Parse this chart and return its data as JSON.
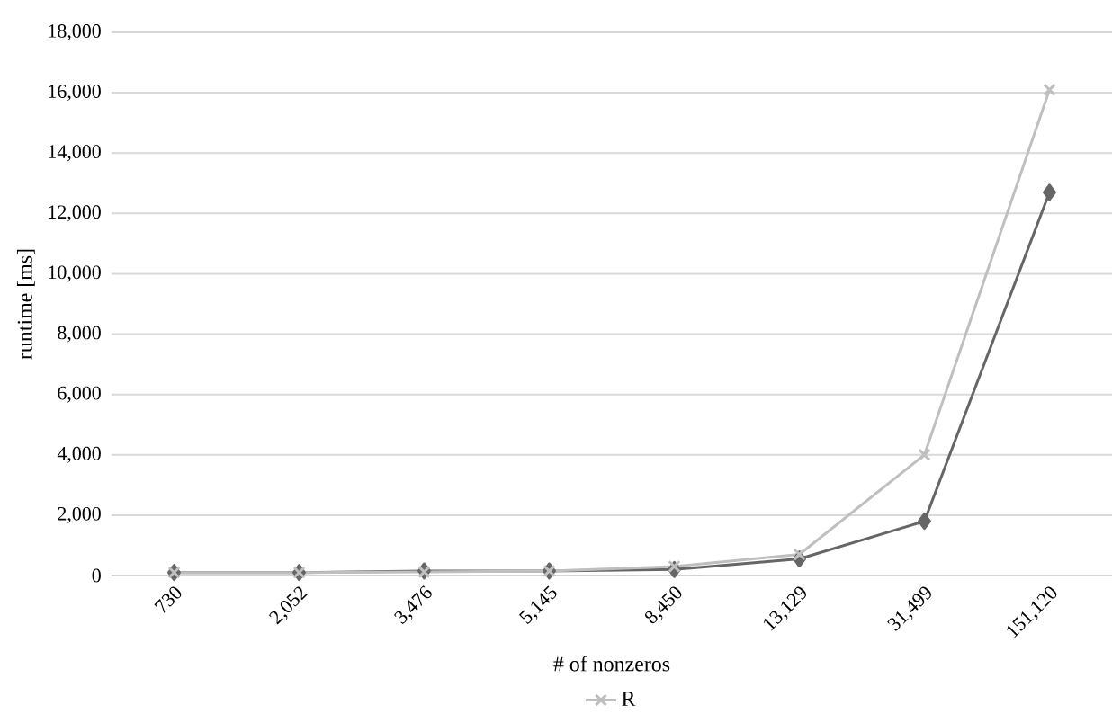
{
  "chart_data": {
    "type": "line",
    "xlabel": "# of nonzeros",
    "ylabel": "runtime [ms]",
    "categories": [
      "730",
      "2,052",
      "3,476",
      "5,145",
      "8,450",
      "13,129",
      "31,499",
      "151,120"
    ],
    "series": [
      {
        "color": "#666666",
        "marker": "diamond",
        "values": [
          100,
          100,
          150,
          150,
          200,
          550,
          1800,
          12700
        ]
      },
      {
        "name": "R",
        "color": "#bfbfbf",
        "marker": "cross",
        "values": [
          100,
          100,
          120,
          150,
          300,
          700,
          4000,
          16100
        ]
      }
    ],
    "ylim": [
      0,
      18000
    ],
    "yticks": [
      {
        "value": 0,
        "label": "0"
      },
      {
        "value": 2000,
        "label": "2,000"
      },
      {
        "value": 4000,
        "label": "4,000"
      },
      {
        "value": 6000,
        "label": "6,000"
      },
      {
        "value": 8000,
        "label": "8,000"
      },
      {
        "value": 10000,
        "label": "10,000"
      },
      {
        "value": 12000,
        "label": "12,000"
      },
      {
        "value": 14000,
        "label": "14,000"
      },
      {
        "value": 16000,
        "label": "16,000"
      },
      {
        "value": 18000,
        "label": "18,000"
      }
    ],
    "grid": "y",
    "legend": "bottom",
    "line_style": "solid"
  }
}
